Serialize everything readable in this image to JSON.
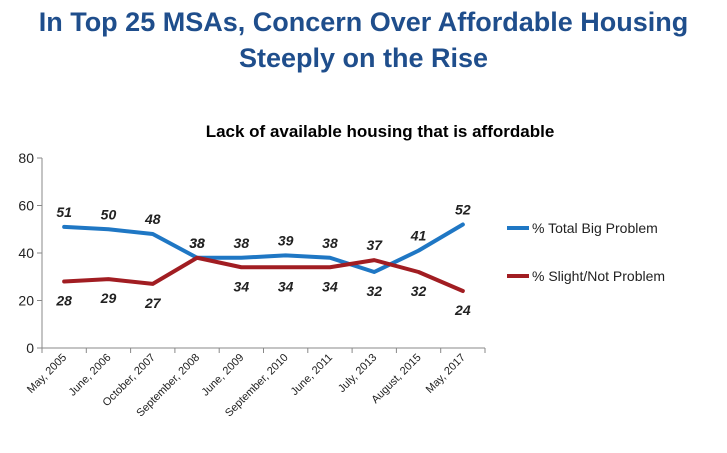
{
  "page": {
    "title_line1": "In Top 25 MSAs, Concern Over Affordable Housing",
    "title_line2": "Steeply on the Rise"
  },
  "chart_data": {
    "type": "line",
    "title": "Lack of available housing that is affordable",
    "categories": [
      "May, 2005",
      "June, 2006",
      "October, 2007",
      "September, 2008",
      "June, 2009",
      "September, 2010",
      "June, 2011",
      "July, 2013",
      "August, 2015",
      "May, 2017"
    ],
    "ylim": [
      0,
      80
    ],
    "yticks": [
      0,
      20,
      40,
      60,
      80
    ],
    "grid": false,
    "legend_position": "right",
    "series": [
      {
        "name": "% Total Big Problem",
        "color": "#1f77c4",
        "values": [
          51,
          50,
          48,
          38,
          38,
          39,
          38,
          32,
          41,
          52
        ]
      },
      {
        "name": "% Slight/Not Problem",
        "color": "#a11d22",
        "values": [
          28,
          29,
          27,
          38,
          34,
          34,
          34,
          37,
          32,
          24
        ]
      }
    ]
  }
}
